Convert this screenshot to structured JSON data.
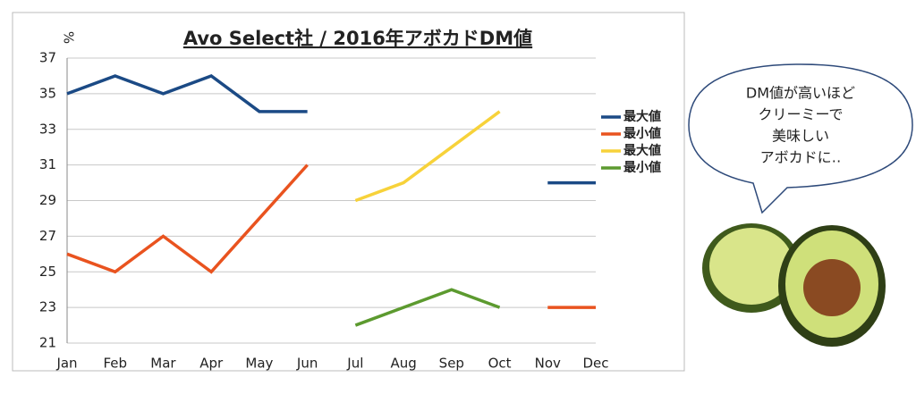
{
  "chart_data": {
    "type": "line",
    "title": "Avo Select社 / 2016年アボカドDM値",
    "y_label": "%",
    "categories": [
      "Jan",
      "Feb",
      "Mar",
      "Apr",
      "May",
      "Jun",
      "Jul",
      "Aug",
      "Sep",
      "Oct",
      "Nov",
      "Dec"
    ],
    "series": [
      {
        "name": "最大値",
        "color": "#1b4a85",
        "values": [
          35,
          36,
          35,
          36,
          34,
          34,
          null,
          null,
          null,
          null,
          30,
          30
        ]
      },
      {
        "name": "最小値",
        "color": "#e9531f",
        "values": [
          26,
          25,
          27,
          25,
          28,
          31,
          null,
          null,
          null,
          null,
          23,
          23
        ]
      },
      {
        "name": "最大値",
        "color": "#f7d23a",
        "values": [
          null,
          null,
          null,
          null,
          null,
          null,
          29,
          30,
          32,
          34,
          null,
          null
        ]
      },
      {
        "name": "最小値",
        "color": "#5c9a2f",
        "values": [
          null,
          null,
          null,
          null,
          null,
          null,
          22,
          23,
          24,
          23,
          null,
          null
        ]
      }
    ],
    "ylim": [
      21,
      37
    ],
    "yticks": [
      21,
      23,
      25,
      27,
      29,
      31,
      33,
      35,
      37
    ],
    "grid": true,
    "legend": "right",
    "annotation": [
      "DM値が高いほど",
      "クリーミーで",
      "美味しい",
      "アボカドに‥"
    ]
  }
}
